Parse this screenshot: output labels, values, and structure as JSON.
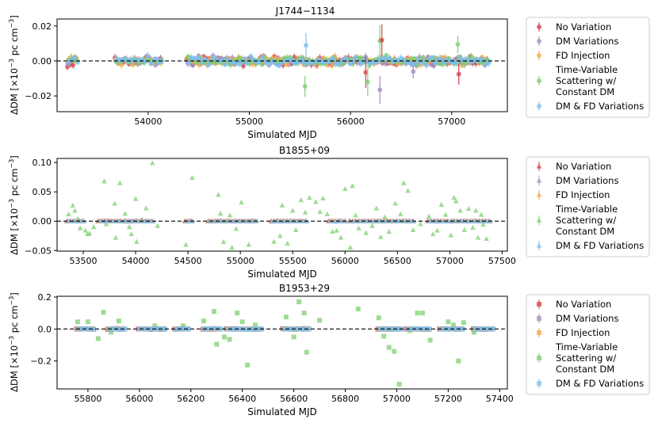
{
  "figure": {
    "ylabel_html": "ΔDM [×10",
    "ylabel_exp": "−3",
    "ylabel_tail": " pc cm",
    "ylabel_exp2": "−3",
    "ylabel_close": "]"
  },
  "legend_entries": [
    {
      "label_lines": [
        "No Variation"
      ],
      "color": "#d6404a"
    },
    {
      "label_lines": [
        "DM Variations"
      ],
      "color": "#a78bc7"
    },
    {
      "label_lines": [
        "FD Injection"
      ],
      "color": "#f5a742"
    },
    {
      "label_lines": [
        "Time-Variable",
        "Scattering w/",
        "Constant DM"
      ],
      "color": "#7dcf6f"
    },
    {
      "label_lines": [
        "DM & FD Variations"
      ],
      "color": "#79bff0"
    }
  ],
  "chart_data": [
    {
      "type": "scatter",
      "marker": "circle",
      "title": "J1744−1134",
      "xlabel": "Simulated MJD",
      "ylabel": "ΔDM [×10^−3 pc cm^−3]",
      "xlim": [
        53100,
        57550
      ],
      "ylim": [
        -0.029,
        0.024
      ],
      "xticks": [
        54000,
        55000,
        56000,
        57000
      ],
      "xtick_labels": [
        "54000",
        "55000",
        "56000",
        "57000"
      ],
      "yticks": [
        -0.02,
        0.0,
        0.02
      ],
      "ytick_labels": [
        "−0.02",
        "0.00",
        "0.02"
      ],
      "baseline": 0,
      "epoch_ranges": [
        [
          53210,
          53300
        ],
        [
          53680,
          54150
        ],
        [
          54390,
          57380
        ]
      ],
      "epoch_step": 28,
      "scatter_amp": 0.0035,
      "series": [
        {
          "name": "No Variation",
          "color": "#d6404a",
          "err": 0.0018
        },
        {
          "name": "DM Variations",
          "color": "#a78bc7",
          "err": 0.0018
        },
        {
          "name": "FD Injection",
          "color": "#f5a742",
          "err": 0.0018
        },
        {
          "name": "Time-Variable Scattering w/ Constant DM",
          "color": "#7dcf6f",
          "err": 0.0018
        },
        {
          "name": "DM & FD Variations",
          "color": "#79bff0",
          "err": 0.0018
        }
      ],
      "outliers": [
        {
          "series": 3,
          "x": 55550,
          "y": -0.0145,
          "err": 0.006
        },
        {
          "series": 4,
          "x": 55560,
          "y": 0.009,
          "err": 0.007
        },
        {
          "series": 0,
          "x": 56150,
          "y": -0.0065,
          "err": 0.009
        },
        {
          "series": 3,
          "x": 56170,
          "y": -0.012,
          "err": 0.008
        },
        {
          "series": 1,
          "x": 56290,
          "y": -0.0165,
          "err": 0.008
        },
        {
          "series": 3,
          "x": 56290,
          "y": 0.0115,
          "err": 0.009
        },
        {
          "series": 0,
          "x": 56310,
          "y": 0.012,
          "err": 0.009
        },
        {
          "series": 0,
          "x": 57070,
          "y": -0.0075,
          "err": 0.006
        },
        {
          "series": 3,
          "x": 57060,
          "y": 0.0095,
          "err": 0.005
        },
        {
          "series": 1,
          "x": 56620,
          "y": -0.006,
          "err": 0.004
        }
      ]
    },
    {
      "type": "scatter",
      "marker": "triangle",
      "title": "B1855+09",
      "xlabel": "Simulated MJD",
      "ylabel": "ΔDM [×10^−3 pc cm^−3]",
      "xlim": [
        53250,
        57550
      ],
      "ylim": [
        -0.051,
        0.107
      ],
      "xticks": [
        53500,
        54000,
        54500,
        55000,
        55500,
        56000,
        56500,
        57000,
        57500
      ],
      "xtick_labels": [
        "53500",
        "54000",
        "54500",
        "55000",
        "55500",
        "56000",
        "56500",
        "57000",
        "57500"
      ],
      "yticks": [
        -0.05,
        0.0,
        0.05,
        0.1
      ],
      "ytick_labels": [
        "−0.05",
        "0.00",
        "0.05",
        "0.10"
      ],
      "baseline": 0,
      "epoch_ranges": [
        [
          53350,
          53500
        ],
        [
          53650,
          54170
        ],
        [
          54480,
          54560
        ],
        [
          54700,
          55150
        ],
        [
          55300,
          55650
        ],
        [
          55850,
          56000
        ],
        [
          56050,
          56650
        ],
        [
          56800,
          57000
        ],
        [
          57020,
          57380
        ]
      ],
      "epoch_step": 30,
      "scatter_amp": 0.0006,
      "series": [
        {
          "name": "No Variation",
          "color": "#d6404a",
          "err": 0.001
        },
        {
          "name": "DM Variations",
          "color": "#a78bc7",
          "err": 0.001
        },
        {
          "name": "FD Injection",
          "color": "#f5a742",
          "err": 0.001
        },
        {
          "name": "Time-Variable Scattering w/ Constant DM",
          "color": "#7dcf6f",
          "err": 0.001
        },
        {
          "name": "DM & FD Variations",
          "color": "#79bff0",
          "err": 0.001
        }
      ],
      "green_points": [
        [
          53360,
          0.012
        ],
        [
          53400,
          0.027
        ],
        [
          53420,
          0.018
        ],
        [
          53450,
          0.004
        ],
        [
          53470,
          -0.012
        ],
        [
          53520,
          -0.016
        ],
        [
          53540,
          -0.022
        ],
        [
          53560,
          -0.021
        ],
        [
          53600,
          -0.01
        ],
        [
          53700,
          0.068
        ],
        [
          53720,
          -0.005
        ],
        [
          53800,
          0.03
        ],
        [
          53810,
          -0.028
        ],
        [
          53850,
          0.065
        ],
        [
          53900,
          0.013
        ],
        [
          53940,
          -0.01
        ],
        [
          53960,
          -0.022
        ],
        [
          54000,
          0.038
        ],
        [
          54010,
          -0.035
        ],
        [
          54060,
          0.003
        ],
        [
          54100,
          0.022
        ],
        [
          54160,
          0.099
        ],
        [
          54210,
          -0.008
        ],
        [
          54480,
          -0.04
        ],
        [
          54540,
          0.074
        ],
        [
          54790,
          0.045
        ],
        [
          54810,
          0.013
        ],
        [
          54840,
          -0.035
        ],
        [
          54900,
          0.01
        ],
        [
          54920,
          -0.045
        ],
        [
          54960,
          -0.013
        ],
        [
          55010,
          0.032
        ],
        [
          55080,
          -0.04
        ],
        [
          55120,
          0.001
        ],
        [
          55320,
          -0.035
        ],
        [
          55380,
          -0.025
        ],
        [
          55400,
          0.027
        ],
        [
          55450,
          -0.038
        ],
        [
          55500,
          0.018
        ],
        [
          55530,
          -0.015
        ],
        [
          55580,
          0.036
        ],
        [
          55620,
          0.015
        ],
        [
          55660,
          0.04
        ],
        [
          55720,
          0.033
        ],
        [
          55760,
          0.016
        ],
        [
          55790,
          0.039
        ],
        [
          55830,
          0.012
        ],
        [
          55880,
          -0.018
        ],
        [
          55920,
          -0.016
        ],
        [
          55960,
          -0.028
        ],
        [
          56000,
          0.055
        ],
        [
          56050,
          -0.045
        ],
        [
          56070,
          0.06
        ],
        [
          56100,
          0.01
        ],
        [
          56130,
          -0.012
        ],
        [
          56200,
          -0.02
        ],
        [
          56260,
          -0.008
        ],
        [
          56300,
          0.022
        ],
        [
          56340,
          -0.027
        ],
        [
          56380,
          0.007
        ],
        [
          56420,
          -0.018
        ],
        [
          56480,
          0.03
        ],
        [
          56530,
          0.012
        ],
        [
          56560,
          0.065
        ],
        [
          56600,
          0.052
        ],
        [
          56650,
          -0.015
        ],
        [
          56720,
          -0.005
        ],
        [
          56800,
          0.008
        ],
        [
          56840,
          -0.022
        ],
        [
          56880,
          -0.016
        ],
        [
          56920,
          0.028
        ],
        [
          56960,
          0.011
        ],
        [
          57010,
          -0.024
        ],
        [
          57040,
          0.04
        ],
        [
          57060,
          0.034
        ],
        [
          57100,
          0.018
        ],
        [
          57140,
          -0.015
        ],
        [
          57180,
          0.021
        ],
        [
          57220,
          -0.011
        ],
        [
          57250,
          0.018
        ],
        [
          57270,
          -0.028
        ],
        [
          57300,
          0.011
        ],
        [
          57320,
          -0.006
        ],
        [
          57350,
          -0.03
        ]
      ]
    },
    {
      "type": "scatter",
      "marker": "square",
      "title": "B1953+29",
      "xlabel": "Simulated MJD",
      "ylabel": "ΔDM [×10^−3 pc cm^−3]",
      "xlim": [
        55680,
        57430
      ],
      "ylim": [
        -0.375,
        0.205
      ],
      "xticks": [
        55800,
        56000,
        56200,
        56400,
        56600,
        56800,
        57000,
        57200,
        57400
      ],
      "xtick_labels": [
        "55800",
        "56000",
        "56200",
        "56400",
        "56600",
        "56800",
        "57000",
        "57200",
        "57400"
      ],
      "yticks": [
        -0.2,
        0.0,
        0.2
      ],
      "ytick_labels": [
        "−0.2",
        "0.0",
        "0.2"
      ],
      "baseline": 0,
      "epoch_ranges": [
        [
          55760,
          55830
        ],
        [
          55880,
          55950
        ],
        [
          56000,
          56100
        ],
        [
          56140,
          56190
        ],
        [
          56250,
          56310
        ],
        [
          56340,
          56480
        ],
        [
          56560,
          56660
        ],
        [
          56930,
          57020
        ],
        [
          57040,
          57130
        ],
        [
          57170,
          57260
        ],
        [
          57300,
          57380
        ]
      ],
      "epoch_step": 12,
      "scatter_amp": 0.004,
      "series": [
        {
          "name": "No Variation",
          "color": "#d6404a",
          "err": 0.008
        },
        {
          "name": "DM Variations",
          "color": "#a78bc7",
          "err": 0.008
        },
        {
          "name": "FD Injection",
          "color": "#f5a742",
          "err": 0.008
        },
        {
          "name": "Time-Variable Scattering w/ Constant DM",
          "color": "#7dcf6f",
          "err": 0.008
        },
        {
          "name": "DM & FD Variations",
          "color": "#79bff0",
          "err": 0.008
        }
      ],
      "green_points": [
        [
          55760,
          0.045
        ],
        [
          55800,
          0.045
        ],
        [
          55840,
          -0.06
        ],
        [
          55860,
          0.105
        ],
        [
          55890,
          -0.02
        ],
        [
          55920,
          0.05
        ],
        [
          56060,
          0.02
        ],
        [
          56170,
          0.02
        ],
        [
          56250,
          0.05
        ],
        [
          56290,
          0.11
        ],
        [
          56300,
          -0.095
        ],
        [
          56330,
          -0.05
        ],
        [
          56350,
          -0.065
        ],
        [
          56380,
          0.1
        ],
        [
          56400,
          0.045
        ],
        [
          56420,
          -0.225
        ],
        [
          56450,
          0.025
        ],
        [
          56570,
          0.075
        ],
        [
          56600,
          -0.05
        ],
        [
          56620,
          0.17
        ],
        [
          56640,
          0.1
        ],
        [
          56650,
          -0.145
        ],
        [
          56700,
          0.055
        ],
        [
          56850,
          0.125
        ],
        [
          56930,
          0.07
        ],
        [
          56950,
          -0.045
        ],
        [
          56970,
          -0.115
        ],
        [
          56990,
          -0.14
        ],
        [
          57010,
          -0.345
        ],
        [
          57050,
          -0.01
        ],
        [
          57080,
          0.1
        ],
        [
          57100,
          0.1
        ],
        [
          57130,
          -0.07
        ],
        [
          57200,
          0.045
        ],
        [
          57220,
          0.025
        ],
        [
          57240,
          -0.2
        ],
        [
          57260,
          0.04
        ],
        [
          57300,
          -0.02
        ]
      ]
    }
  ]
}
